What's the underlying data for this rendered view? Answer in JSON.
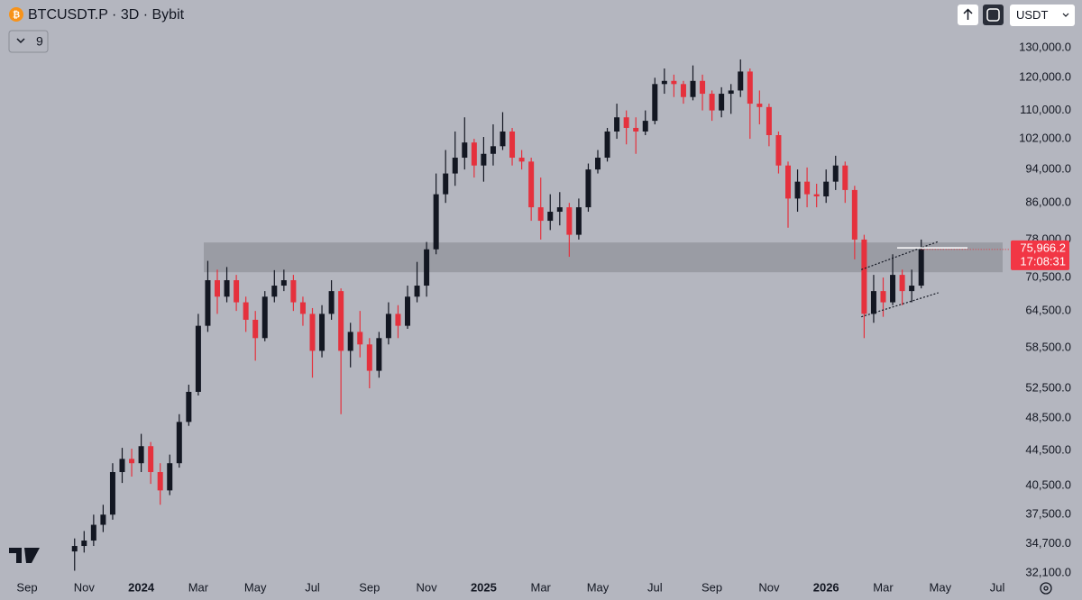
{
  "chart_data": {
    "type": "candlestick",
    "title": "BTCUSDT.P · 3D · Bybit",
    "indicator_count": 9,
    "currency": "USDT",
    "log_scale": true,
    "grid": false,
    "up_color": "#131722",
    "down_color": "#e5313d",
    "categories": [
      "Sep",
      null,
      null,
      null,
      null,
      null,
      "Nov",
      null,
      null,
      null,
      null,
      null,
      "2024",
      null,
      null,
      null,
      null,
      null,
      "Mar",
      null,
      null,
      null,
      null,
      null,
      "May",
      null,
      null,
      null,
      null,
      null,
      "Jul",
      null,
      null,
      null,
      null,
      null,
      "Sep",
      null,
      null,
      null,
      null,
      null,
      "Nov",
      null,
      null,
      null,
      null,
      null,
      "2025",
      null,
      null,
      null,
      null,
      null,
      "Mar",
      null,
      null,
      null,
      null,
      null,
      "May",
      null,
      null,
      null,
      null,
      null,
      "Jul",
      null,
      null,
      null,
      null,
      null,
      "Sep",
      null,
      null,
      null,
      null,
      null,
      "Nov",
      null,
      null,
      null,
      null,
      null,
      "2026",
      null,
      null,
      null,
      null,
      null,
      "Mar",
      null,
      null,
      null,
      null,
      null,
      "May",
      null,
      null,
      null,
      null,
      null,
      "Jul"
    ],
    "open": [
      null,
      null,
      null,
      null,
      null,
      34000,
      34500,
      35000,
      36500,
      37500,
      42000,
      43500,
      43000,
      45000,
      42000,
      40000,
      43000,
      48000,
      52000,
      62000,
      70000,
      67000,
      70000,
      66000,
      63000,
      60000,
      67000,
      69000,
      70000,
      66000,
      64000,
      58000,
      64000,
      68000,
      58000,
      61000,
      59000,
      55000,
      60000,
      64000,
      62000,
      67000,
      69000,
      76000,
      88000,
      93000,
      97000,
      101000,
      95000,
      98000,
      100000,
      104000,
      97000,
      96000,
      85000,
      82000,
      84000,
      85000,
      79000,
      85000,
      94000,
      97000,
      104000,
      108000,
      105000,
      104000,
      107000,
      118000,
      119000,
      118000,
      114000,
      119000,
      115000,
      110000,
      115000,
      116000,
      122000,
      112000,
      111000,
      103000,
      95000,
      87000,
      91000,
      88000,
      87500,
      91000,
      95000,
      89000,
      78000,
      64000,
      68000,
      66000,
      71000,
      68000,
      69000,
      null,
      null,
      null,
      null,
      null,
      null,
      null,
      null
    ],
    "high": [
      null,
      null,
      null,
      null,
      null,
      35200,
      35900,
      37500,
      38500,
      43000,
      44800,
      44700,
      46500,
      45500,
      43000,
      44000,
      49000,
      53000,
      64000,
      73700,
      72000,
      72500,
      71000,
      67000,
      64500,
      68000,
      71900,
      72000,
      71000,
      67000,
      65000,
      65500,
      70000,
      68500,
      62500,
      64500,
      60000,
      61000,
      66000,
      65500,
      69000,
      73500,
      77500,
      93000,
      99000,
      104000,
      108000,
      102000,
      102500,
      106000,
      109500,
      105000,
      99000,
      97000,
      92000,
      88000,
      88500,
      86000,
      87000,
      95500,
      99000,
      105000,
      112000,
      110000,
      108000,
      110000,
      120000,
      123000,
      121000,
      119000,
      124000,
      121000,
      116000,
      117000,
      118000,
      126000,
      123000,
      116000,
      112000,
      104000,
      96000,
      94000,
      94500,
      90500,
      94000,
      97500,
      96000,
      90000,
      79000,
      71000,
      70500,
      75000,
      72000,
      72000,
      78000,
      null,
      null,
      null,
      null,
      null,
      null,
      null,
      null
    ],
    "low": [
      null,
      null,
      null,
      null,
      null,
      32300,
      33900,
      34500,
      35800,
      37000,
      40800,
      41500,
      42000,
      40700,
      38500,
      39500,
      42500,
      47500,
      51500,
      61000,
      64000,
      66000,
      64500,
      61000,
      56500,
      59500,
      66000,
      68000,
      64500,
      62000,
      54000,
      57000,
      63000,
      49000,
      55500,
      57000,
      52500,
      54000,
      59000,
      60000,
      61500,
      66000,
      67000,
      75000,
      86000,
      90000,
      94000,
      92000,
      91000,
      95000,
      99000,
      95000,
      94000,
      82000,
      78000,
      80000,
      81000,
      74500,
      78000,
      84000,
      93000,
      96000,
      102000,
      100500,
      98000,
      103000,
      106000,
      115000,
      114000,
      112000,
      113000,
      110000,
      107000,
      108000,
      109000,
      114000,
      102000,
      106000,
      100000,
      93000,
      80500,
      84000,
      85000,
      85000,
      86000,
      89000,
      86000,
      74000,
      60000,
      62500,
      63500,
      65500,
      65500,
      66000,
      68500,
      null,
      null,
      null,
      null,
      null,
      null,
      null,
      null
    ],
    "close": [
      null,
      null,
      null,
      null,
      null,
      34500,
      35000,
      36500,
      37500,
      42000,
      43500,
      43000,
      45000,
      42000,
      40000,
      43000,
      48000,
      52000,
      62000,
      70000,
      67000,
      70000,
      66000,
      63000,
      60000,
      67000,
      69000,
      70000,
      66000,
      64000,
      58000,
      64000,
      68000,
      58000,
      61000,
      59000,
      55000,
      60000,
      64000,
      62000,
      67000,
      69000,
      76000,
      88000,
      93000,
      97000,
      101000,
      95000,
      98000,
      100000,
      104000,
      97000,
      96000,
      85000,
      82000,
      84000,
      85000,
      79000,
      85000,
      94000,
      97000,
      104000,
      108000,
      105000,
      104000,
      107000,
      118000,
      119000,
      118000,
      114000,
      119000,
      115000,
      110000,
      115000,
      116000,
      122000,
      112000,
      111000,
      103000,
      95000,
      87000,
      91000,
      88000,
      87500,
      91000,
      95000,
      89000,
      78000,
      64000,
      68000,
      66000,
      71000,
      68000,
      69000,
      75966.2,
      null,
      null,
      null,
      null,
      null,
      null,
      null,
      null
    ],
    "last_price": {
      "value": 75966.2,
      "label": "75,966.2"
    },
    "countdown": "17:08:31",
    "zone": {
      "low": 71500,
      "high": 77400
    },
    "resistance": 76300,
    "channel": {
      "upper": [
        72000,
        77600
      ],
      "lower": [
        63500,
        67700
      ]
    },
    "ylim": [
      31800,
      147600
    ],
    "yticks": [
      {
        "value": 130000,
        "label": "130,000.0"
      },
      {
        "value": 120000,
        "label": "120,000.0"
      },
      {
        "value": 110000,
        "label": "110,000.0"
      },
      {
        "value": 102000,
        "label": "102,000.0"
      },
      {
        "value": 94000,
        "label": "94,000.0"
      },
      {
        "value": 86000,
        "label": "86,000.0"
      },
      {
        "value": 78000,
        "label": "78,000.0"
      },
      {
        "value": 70500,
        "label": "70,500.0"
      },
      {
        "value": 64500,
        "label": "64,500.0"
      },
      {
        "value": 58500,
        "label": "58,500.0"
      },
      {
        "value": 52500,
        "label": "52,500.0"
      },
      {
        "value": 48500,
        "label": "48,500.0"
      },
      {
        "value": 44500,
        "label": "44,500.0"
      },
      {
        "value": 40500,
        "label": "40,500.0"
      },
      {
        "value": 37500,
        "label": "37,500.0"
      },
      {
        "value": 34700,
        "label": "34,700.0"
      },
      {
        "value": 32100,
        "label": "32,100.0"
      }
    ]
  }
}
